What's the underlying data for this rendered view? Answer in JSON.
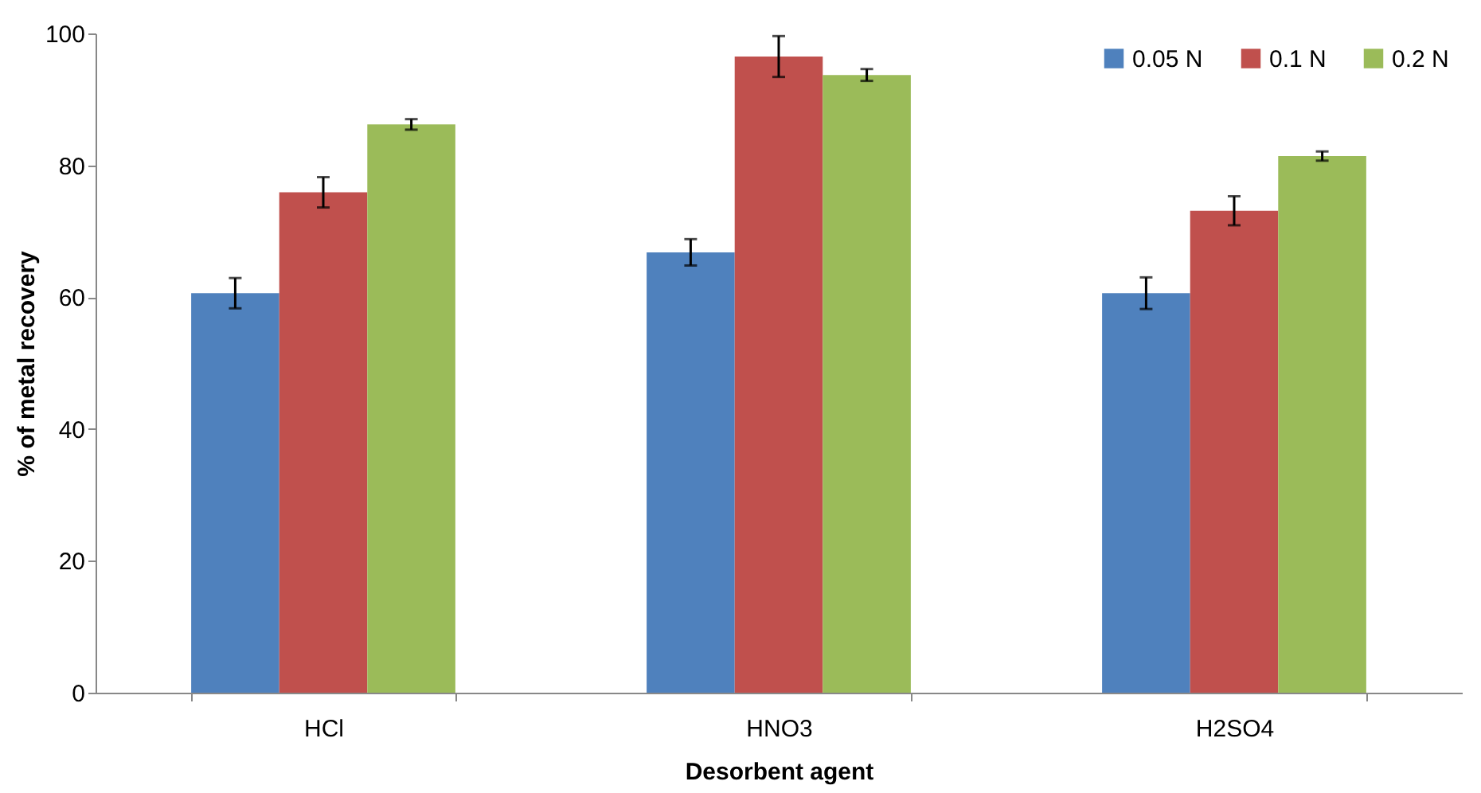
{
  "chart_data": {
    "type": "bar",
    "xlabel": "Desorbent agent",
    "ylabel": "% of metal recovery",
    "categories": [
      "HCl",
      "HNO3",
      "H2SO4"
    ],
    "series": [
      {
        "name": "0.05 N",
        "color": "#4f81bd",
        "values": [
          60.6,
          66.8,
          60.6
        ],
        "errors": [
          2.3,
          2.0,
          2.4
        ]
      },
      {
        "name": "0.1 N",
        "color": "#c0504d",
        "values": [
          75.9,
          96.5,
          73.1
        ],
        "errors": [
          2.3,
          3.1,
          2.2
        ]
      },
      {
        "name": "0.2 N",
        "color": "#9bbb59",
        "values": [
          86.2,
          93.7,
          81.4
        ],
        "errors": [
          0.8,
          0.9,
          0.7
        ]
      }
    ],
    "ylim": [
      0,
      100
    ],
    "yticks": [
      0,
      20,
      40,
      60,
      80,
      100
    ],
    "grid": false,
    "legend": "top right"
  }
}
